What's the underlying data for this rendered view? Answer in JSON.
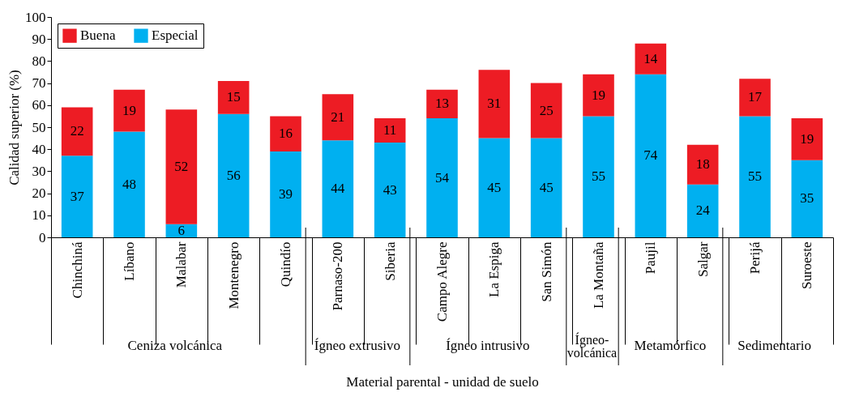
{
  "chart_data": {
    "type": "bar",
    "stacked": true,
    "xlabel": "Material parental - unidad de suelo",
    "ylabel": "Calidad superior (%)",
    "categories": [
      "Chinchiná",
      "Líbano",
      "Malabar",
      "Montenegro",
      "Quindío",
      "Parnaso-200",
      "Siberia",
      "Campo Alegre",
      "La Espiga",
      "San Simón",
      "La Montaña",
      "Paujil",
      "Salgar",
      "Perijá",
      "Suroeste"
    ],
    "series": [
      {
        "name": "Especial",
        "color": "#00b0f0",
        "values": [
          37,
          48,
          6,
          56,
          39,
          44,
          43,
          54,
          45,
          45,
          55,
          74,
          24,
          55,
          35
        ]
      },
      {
        "name": "Buena",
        "color": "#ed1c24",
        "values": [
          22,
          19,
          52,
          15,
          16,
          21,
          11,
          13,
          31,
          25,
          19,
          14,
          18,
          17,
          19
        ]
      }
    ],
    "ylim": [
      0,
      100
    ],
    "yticks": [
      0,
      10,
      20,
      30,
      40,
      50,
      60,
      70,
      80,
      90,
      100
    ],
    "grid": false,
    "legend": "top left",
    "data_labels": true,
    "annotations": [
      "Ceniza volcánica",
      "Ígneo extrusivo",
      "Ígneo intrusivo",
      "Ígneo-volcánica",
      "Metamórfico",
      "Sedimentario"
    ]
  }
}
